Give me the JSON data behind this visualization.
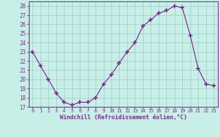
{
  "x": [
    0,
    1,
    2,
    3,
    4,
    5,
    6,
    7,
    8,
    9,
    10,
    11,
    12,
    13,
    14,
    15,
    16,
    17,
    18,
    19,
    20,
    21,
    22,
    23
  ],
  "y": [
    23,
    21.5,
    20,
    18.5,
    17.5,
    17.2,
    17.5,
    17.5,
    18.0,
    19.5,
    20.5,
    21.8,
    23.0,
    24.0,
    25.8,
    26.5,
    27.2,
    27.5,
    28.0,
    27.8,
    24.8,
    21.2,
    19.5,
    19.3
  ],
  "line_color": "#7b2d8b",
  "marker": "+",
  "marker_size": 4,
  "bg_color": "#c8eee8",
  "plot_bg_color": "#c8eee8",
  "grid_color": "#a0cfc8",
  "xlabel": "Windchill (Refroidissement éolien,°C)",
  "xlabel_color": "#7b2d8b",
  "tick_color": "#7b2d8b",
  "spine_color": "#7b2d8b",
  "xlim": [
    -0.5,
    23.5
  ],
  "ylim": [
    17,
    28.5
  ],
  "yticks": [
    17,
    18,
    19,
    20,
    21,
    22,
    23,
    24,
    25,
    26,
    27,
    28
  ],
  "xticks": [
    0,
    1,
    2,
    3,
    4,
    5,
    6,
    7,
    8,
    9,
    10,
    11,
    12,
    13,
    14,
    15,
    16,
    17,
    18,
    19,
    20,
    21,
    22,
    23
  ],
  "xtick_labels": [
    "0",
    "1",
    "2",
    "3",
    "4",
    "5",
    "6",
    "7",
    "8",
    "9",
    "10",
    "11",
    "12",
    "13",
    "14",
    "15",
    "16",
    "17",
    "18",
    "19",
    "20",
    "21",
    "22",
    "23"
  ]
}
